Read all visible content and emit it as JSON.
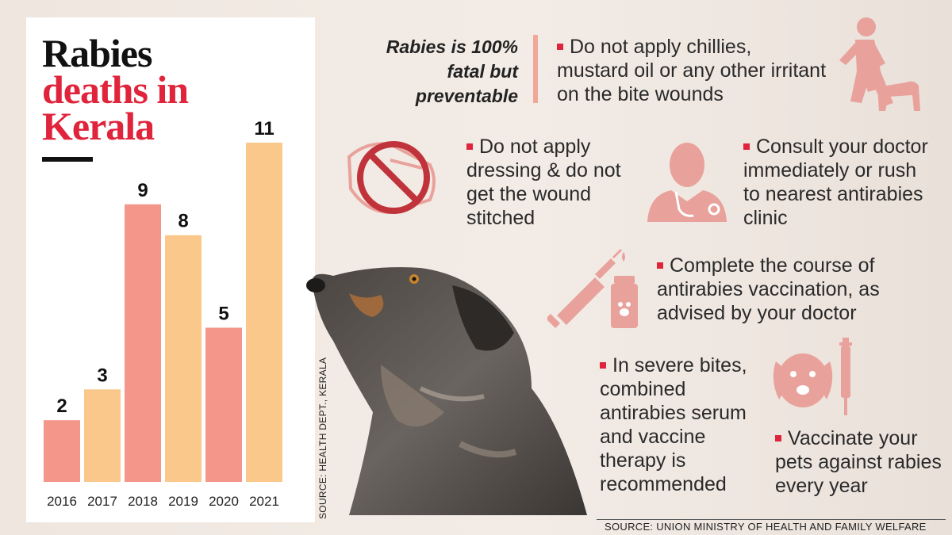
{
  "title": {
    "line1": "Rabies",
    "line2": "deaths in",
    "line3": "Kerala"
  },
  "chart_data": {
    "type": "bar",
    "title": "Rabies deaths in Kerala",
    "categories": [
      "2016",
      "2017",
      "2018",
      "2019",
      "2020",
      "2021"
    ],
    "values": [
      2,
      3,
      9,
      8,
      5,
      11
    ],
    "bar_colors": [
      "#f4968a",
      "#f9c88a",
      "#f4968a",
      "#f9c88a",
      "#f4968a",
      "#f9c88a"
    ],
    "data_labels": [
      "2",
      "3",
      "9",
      "8",
      "5",
      "11"
    ],
    "ylim": [
      0,
      11
    ]
  },
  "chart_source": "SOURCE: HEALTH DEPT., KERALA",
  "headline": {
    "text": "Rabies is 100% fatal but preventable"
  },
  "tips": [
    {
      "text": "Do not apply chillies, mustard oil or any other irritant on the bite wounds"
    },
    {
      "text": "Do not apply dressing & do not get the wound stitched"
    },
    {
      "text": "Consult your doctor immediately or rush to nearest antirabies clinic"
    },
    {
      "text": "Complete the course of antirabies vaccination, as advised by your doctor"
    },
    {
      "text": "In severe bites, combined antirabies serum and vaccine therapy is recommended"
    },
    {
      "text": "Vaccinate your pets against rabies every year"
    }
  ],
  "footer_source": "SOURCE:  UNION MINISTRY OF HEALTH AND FAMILY WELFARE",
  "colors": {
    "accent": "#e0243b",
    "bar_a": "#f4968a",
    "bar_b": "#f9c88a",
    "icon": "#e8a29b"
  },
  "icons": [
    "person-dog-icon",
    "no-bandage-icon",
    "doctor-icon",
    "syringe-vial-icon",
    "dog-face-syringe-icon"
  ]
}
